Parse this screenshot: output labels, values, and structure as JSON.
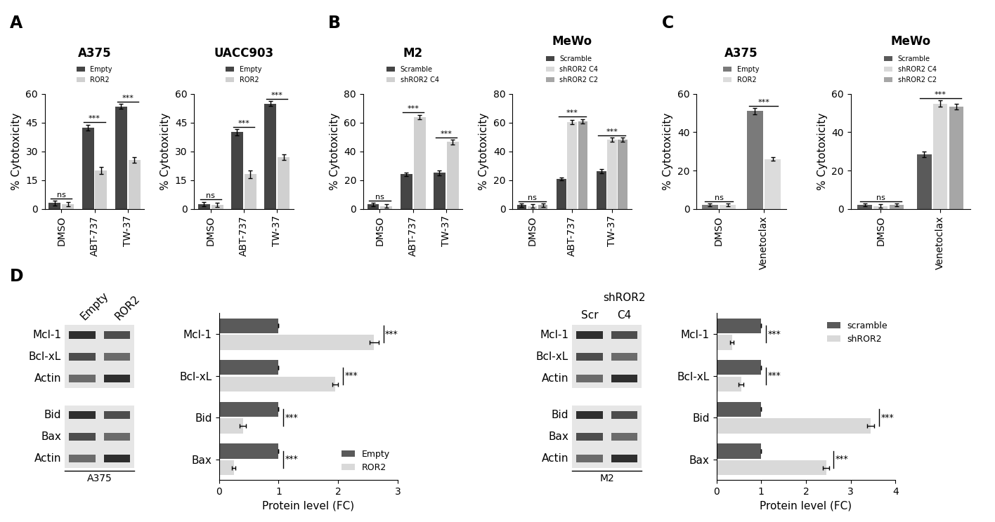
{
  "chart_data": [
    {
      "panel": "A",
      "type": "bar",
      "title": "A375",
      "categories": [
        "DMSO",
        "ABT-737",
        "TW-37"
      ],
      "series": [
        {
          "name": "Empty",
          "color": "#454545",
          "values": [
            3,
            42.5,
            53.5
          ],
          "errors": [
            1.2,
            1.5,
            1.2
          ]
        },
        {
          "name": "ROR2",
          "color": "#d0d0d0",
          "values": [
            2.5,
            20,
            25.5
          ],
          "errors": [
            1.2,
            2,
            1.5
          ]
        }
      ],
      "ylabel": "% Cytotoxicity",
      "ylim": [
        0,
        60
      ],
      "yticks": [
        0,
        15,
        30,
        45,
        60
      ],
      "significance": [
        "ns",
        "***",
        "***"
      ],
      "legend": "top"
    },
    {
      "type": "bar",
      "title": "UACC903",
      "categories": [
        "DMSO",
        "ABT-737",
        "TW-37"
      ],
      "series": [
        {
          "name": "Empty",
          "color": "#454545",
          "values": [
            2.5,
            40,
            55
          ],
          "errors": [
            1.2,
            1.5,
            1.2
          ]
        },
        {
          "name": "ROR2",
          "color": "#d0d0d0",
          "values": [
            2,
            18,
            27
          ],
          "errors": [
            1.2,
            2,
            1.5
          ]
        }
      ],
      "ylabel": "% Cytotoxicity",
      "ylim": [
        0,
        60
      ],
      "yticks": [
        0,
        15,
        30,
        45,
        60
      ],
      "significance": [
        "ns",
        "***",
        "***"
      ],
      "legend": "top"
    },
    {
      "panel": "B",
      "type": "bar",
      "title": "M2",
      "categories": [
        "DMSO",
        "ABT-737",
        "TW-37"
      ],
      "series": [
        {
          "name": "Scramble",
          "color": "#454545",
          "values": [
            3,
            24,
            25
          ],
          "errors": [
            1.2,
            1,
            1.5
          ]
        },
        {
          "name": "shROR2 C4",
          "color": "#d0d0d0",
          "values": [
            2,
            64,
            46.5
          ],
          "errors": [
            1.2,
            1.5,
            1.5
          ]
        }
      ],
      "ylabel": "% Cytotoxicity",
      "ylim": [
        0,
        80
      ],
      "yticks": [
        0,
        20,
        40,
        60,
        80
      ],
      "significance": [
        "ns",
        "***",
        "***"
      ],
      "legend": "top"
    },
    {
      "type": "bar",
      "title": "MeWo",
      "categories": [
        "DMSO",
        "ABT-737",
        "TW-37"
      ],
      "series": [
        {
          "name": "Scramble",
          "color": "#454545",
          "values": [
            2.5,
            21,
            26
          ],
          "errors": [
            1.2,
            1,
            1.5
          ]
        },
        {
          "name": "shROR2 C4",
          "color": "#d9d9d9",
          "values": [
            2,
            60.5,
            48
          ],
          "errors": [
            1,
            1.5,
            1.5
          ]
        },
        {
          "name": "shROR2 C2",
          "color": "#a6a6a6",
          "values": [
            2.5,
            61,
            48
          ],
          "errors": [
            1.2,
            1.5,
            1.5
          ]
        }
      ],
      "ylabel": "% Cytotoxicity",
      "ylim": [
        0,
        80
      ],
      "yticks": [
        0,
        20,
        40,
        60,
        80
      ],
      "significance": [
        "ns",
        "***",
        "***"
      ],
      "legend": "top"
    },
    {
      "panel": "C",
      "type": "bar",
      "title": "A375",
      "categories": [
        "DMSO",
        "Venetoclax"
      ],
      "series": [
        {
          "name": "Empty",
          "color": "#7a7a7a",
          "values": [
            2,
            51
          ],
          "errors": [
            0.8,
            1.5
          ]
        },
        {
          "name": "ROR2",
          "color": "#dcdcdc",
          "values": [
            2,
            26
          ],
          "errors": [
            0.8,
            1
          ]
        }
      ],
      "ylabel": "% Cytotoxicity",
      "ylim": [
        0,
        60
      ],
      "yticks": [
        0,
        20,
        40,
        60
      ],
      "significance": [
        "ns",
        "***"
      ],
      "legend": "top"
    },
    {
      "type": "bar",
      "title": "MeWo",
      "categories": [
        "DMSO",
        "Venetoclax"
      ],
      "series": [
        {
          "name": "Scramble",
          "color": "#5a5a5a",
          "values": [
            2,
            28.5
          ],
          "errors": [
            0.8,
            1.5
          ]
        },
        {
          "name": "shROR2 C4",
          "color": "#d9d9d9",
          "values": [
            1.5,
            55
          ],
          "errors": [
            0.8,
            1.5
          ]
        },
        {
          "name": "shROR2 C2",
          "color": "#a6a6a6",
          "values": [
            2,
            53.5
          ],
          "errors": [
            0.8,
            1.5
          ]
        }
      ],
      "ylabel": "% Cytotoxicity",
      "ylim": [
        0,
        60
      ],
      "yticks": [
        0,
        20,
        40,
        60
      ],
      "significance": [
        "ns",
        "***"
      ],
      "legend": "top"
    },
    {
      "type": "bar",
      "orientation": "horizontal",
      "categories": [
        "Mcl-1",
        "Bcl-xL",
        "Bid",
        "Bax"
      ],
      "series": [
        {
          "name": "Empty",
          "color": "#5a5a5a",
          "values": [
            1,
            1,
            1,
            1
          ],
          "errors": [
            0,
            0,
            0,
            0
          ]
        },
        {
          "name": "ROR2",
          "color": "#d9d9d9",
          "values": [
            2.6,
            1.95,
            0.4,
            0.25
          ],
          "errors": [
            0.08,
            0.05,
            0.05,
            0.03
          ]
        }
      ],
      "xlabel": "Protein level (FC)",
      "xlim": [
        0,
        3
      ],
      "xticks": [
        0,
        1,
        2,
        3
      ],
      "significance": [
        "***",
        "***",
        "***",
        "***"
      ],
      "legend": "lower right"
    },
    {
      "type": "bar",
      "orientation": "horizontal",
      "categories": [
        "Mcl-1",
        "Bcl-xL",
        "Bid",
        "Bax"
      ],
      "series": [
        {
          "name": "scramble",
          "color": "#5a5a5a",
          "values": [
            1,
            1,
            1,
            1
          ],
          "errors": [
            0,
            0,
            0,
            0
          ]
        },
        {
          "name": "shROR2",
          "color": "#d9d9d9",
          "values": [
            0.35,
            0.55,
            3.45,
            2.45
          ],
          "errors": [
            0.04,
            0.05,
            0.08,
            0.07
          ]
        }
      ],
      "xlabel": "Protein level (FC)",
      "xlim": [
        0,
        4
      ],
      "xticks": [
        0,
        1,
        2,
        3,
        4
      ],
      "significance": [
        "***",
        "***",
        "***",
        "***"
      ],
      "legend": "upper right"
    }
  ],
  "blots": [
    {
      "panel": "D",
      "lanes": [
        "Empty",
        "ROR2"
      ],
      "groups": [
        [
          "Mcl-1",
          "Bcl-xL",
          "Actin"
        ],
        [
          "Bid",
          "Bax",
          "Actin"
        ]
      ],
      "cell_line": "A375"
    },
    {
      "header": "shROR2",
      "lanes": [
        "Scr",
        "C4"
      ],
      "groups": [
        [
          "Mcl-1",
          "Bcl-xL",
          "Actin"
        ],
        [
          "Bid",
          "Bax",
          "Actin"
        ]
      ],
      "cell_line": "M2"
    }
  ]
}
